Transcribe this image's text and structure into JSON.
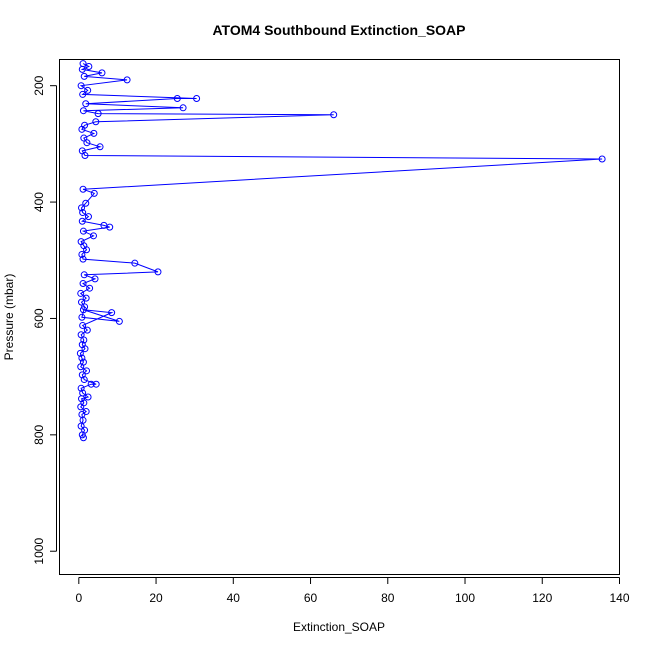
{
  "chart_data": {
    "type": "line",
    "title": "ATOM4 Southbound Extinction_SOAP",
    "xlabel": "Extinction_SOAP",
    "ylabel": "Pressure (mbar)",
    "xlim": [
      -5,
      140
    ],
    "ylim": [
      1040,
      155
    ],
    "y_reversed": true,
    "grid": false,
    "x_ticks": [
      0,
      20,
      40,
      60,
      80,
      100,
      120,
      140
    ],
    "y_ticks": [
      200,
      400,
      600,
      800,
      1000
    ],
    "color": "#0000ff",
    "series": [
      {
        "points": [
          [
            1.2,
            805
          ],
          [
            0.9,
            800
          ],
          [
            1.5,
            792
          ],
          [
            0.6,
            785
          ],
          [
            1.1,
            775
          ],
          [
            0.8,
            765
          ],
          [
            1.9,
            760
          ],
          [
            0.5,
            752
          ],
          [
            1.3,
            745
          ],
          [
            0.7,
            738
          ],
          [
            2.4,
            735
          ],
          [
            1.0,
            728
          ],
          [
            0.6,
            720
          ],
          [
            3.2,
            713
          ],
          [
            4.5,
            713
          ],
          [
            1.4,
            705
          ],
          [
            0.9,
            697
          ],
          [
            2.0,
            690
          ],
          [
            0.5,
            683
          ],
          [
            1.2,
            675
          ],
          [
            0.8,
            668
          ],
          [
            0.4,
            660
          ],
          [
            1.6,
            652
          ],
          [
            0.9,
            645
          ],
          [
            1.3,
            637
          ],
          [
            0.6,
            628
          ],
          [
            2.2,
            620
          ],
          [
            1.0,
            612
          ],
          [
            8.5,
            590
          ],
          [
            1.2,
            585
          ],
          [
            10.5,
            605
          ],
          [
            0.8,
            598
          ],
          [
            1.5,
            580
          ],
          [
            0.7,
            572
          ],
          [
            1.9,
            565
          ],
          [
            0.5,
            557
          ],
          [
            2.8,
            548
          ],
          [
            1.1,
            540
          ],
          [
            4.2,
            532
          ],
          [
            1.4,
            525
          ],
          [
            20.5,
            520
          ],
          [
            14.5,
            505
          ],
          [
            1.1,
            498
          ],
          [
            0.8,
            490
          ],
          [
            2.0,
            482
          ],
          [
            1.3,
            475
          ],
          [
            0.6,
            468
          ],
          [
            3.8,
            458
          ],
          [
            1.2,
            450
          ],
          [
            8.0,
            443
          ],
          [
            6.5,
            440
          ],
          [
            0.9,
            433
          ],
          [
            2.5,
            425
          ],
          [
            1.0,
            418
          ],
          [
            0.7,
            410
          ],
          [
            1.8,
            402
          ],
          [
            4.0,
            385
          ],
          [
            1.1,
            378
          ],
          [
            135.5,
            326
          ],
          [
            1.6,
            320
          ],
          [
            0.9,
            312
          ],
          [
            5.5,
            305
          ],
          [
            2.1,
            298
          ],
          [
            1.3,
            290
          ],
          [
            3.9,
            282
          ],
          [
            0.8,
            275
          ],
          [
            1.5,
            268
          ],
          [
            4.4,
            262
          ],
          [
            66.0,
            250
          ],
          [
            5.0,
            248
          ],
          [
            1.2,
            243
          ],
          [
            27.0,
            238
          ],
          [
            1.8,
            231
          ],
          [
            25.5,
            222
          ],
          [
            30.5,
            222
          ],
          [
            1.0,
            215
          ],
          [
            2.3,
            208
          ],
          [
            0.6,
            200
          ],
          [
            12.5,
            190
          ],
          [
            1.4,
            184
          ],
          [
            6.0,
            178
          ],
          [
            0.9,
            172
          ],
          [
            2.6,
            167
          ],
          [
            1.1,
            162
          ]
        ]
      }
    ]
  }
}
